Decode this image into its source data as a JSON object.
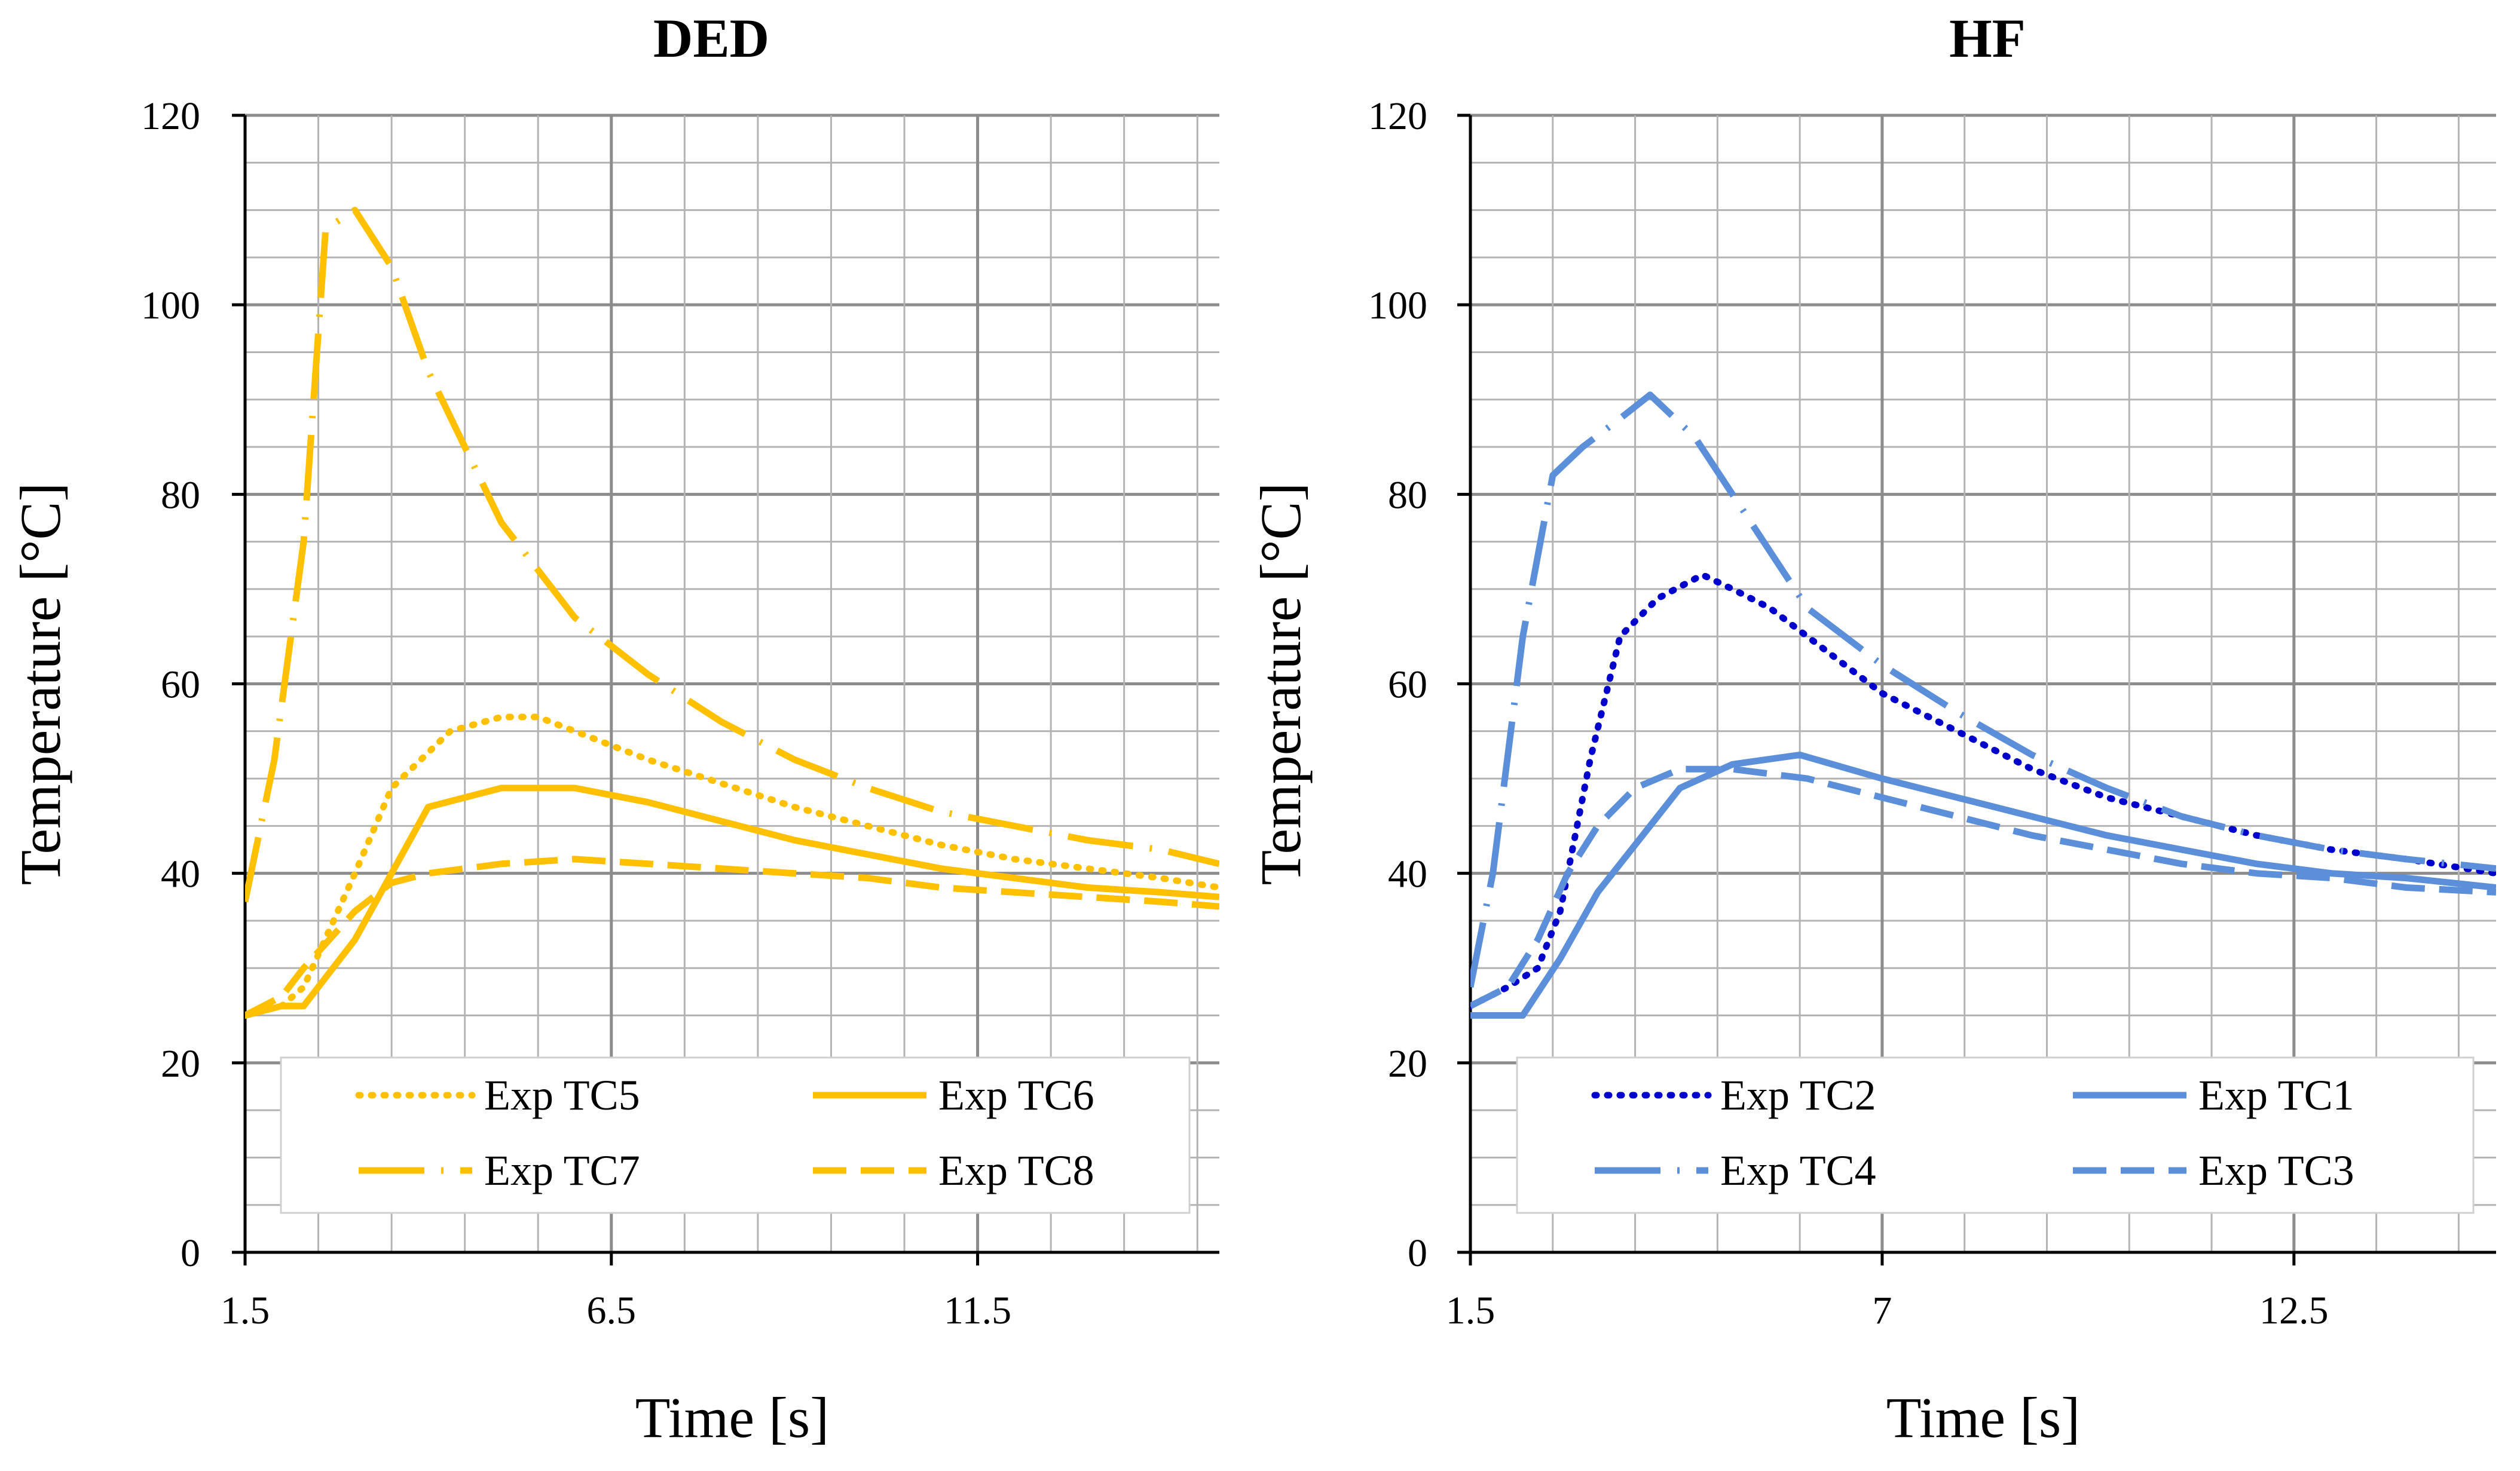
{
  "chart_data": [
    {
      "type": "line",
      "title": "DED",
      "xlabel": "Time [s]",
      "ylabel": "Temperature [°C]",
      "xlim": [
        1.5,
        14.8
      ],
      "ylim": [
        0,
        120
      ],
      "x_major_ticks": [
        1.5,
        6.5,
        11.5
      ],
      "x_tick_labels": [
        "1.5",
        "6.5",
        "11.5"
      ],
      "x_gridlines": [
        1.5,
        2.5,
        3.5,
        4.5,
        5.5,
        6.5,
        7.5,
        8.5,
        9.5,
        10.5,
        11.5,
        12.5,
        13.5,
        14.5
      ],
      "y_major_ticks": [
        0,
        20,
        40,
        60,
        80,
        100,
        120
      ],
      "y_tick_labels": [
        "0",
        "20",
        "40",
        "60",
        "80",
        "100",
        "120"
      ],
      "y_minor_step": 5,
      "grid": true,
      "legend": {
        "position": "bottom",
        "columns": 2,
        "order": [
          "Exp TC5",
          "Exp TC6",
          "Exp TC7",
          "Exp TC8"
        ]
      },
      "series": [
        {
          "name": "Exp TC5",
          "style": "dotted",
          "color": "#FFC000",
          "x": [
            1.5,
            2.0,
            2.3,
            3.0,
            3.5,
            4.3,
            5.0,
            5.5,
            6.0,
            7.0,
            8.0,
            9.0,
            10.0,
            11.0,
            12.0,
            13.0,
            14.0,
            14.8
          ],
          "y": [
            25,
            26,
            28,
            40,
            49,
            55,
            56.5,
            56.5,
            55,
            52,
            49.5,
            47,
            45,
            43,
            41.5,
            40.5,
            39.5,
            38.5
          ]
        },
        {
          "name": "Exp TC6",
          "style": "solid",
          "color": "#FFC000",
          "x": [
            1.5,
            2.0,
            2.3,
            3.0,
            3.5,
            4.0,
            5.0,
            5.5,
            6.0,
            7.0,
            8.0,
            9.0,
            10.0,
            11.0,
            12.0,
            13.0,
            14.0,
            14.8
          ],
          "y": [
            25,
            26,
            26,
            33,
            40,
            47,
            49,
            49,
            49,
            47.5,
            45.5,
            43.5,
            42,
            40.5,
            39.5,
            38.5,
            38,
            37.5
          ]
        },
        {
          "name": "Exp TC7",
          "style": "long-dash-dot",
          "color": "#FFC000",
          "x": [
            1.5,
            1.9,
            2.3,
            2.6,
            3.0,
            3.5,
            4.0,
            5.0,
            6.0,
            7.0,
            8.0,
            9.0,
            10.0,
            11.0,
            12.0,
            13.0,
            14.0,
            14.8
          ],
          "y": [
            37,
            52,
            75,
            108,
            110,
            104,
            93,
            77,
            67,
            61,
            56,
            52,
            49,
            46.5,
            45,
            43.5,
            42.5,
            41
          ]
        },
        {
          "name": "Exp TC8",
          "style": "dashed",
          "color": "#FFC000",
          "x": [
            1.5,
            2.0,
            2.3,
            3.0,
            3.5,
            4.0,
            5.0,
            6.0,
            7.0,
            8.0,
            9.0,
            10.0,
            11.0,
            12.0,
            13.0,
            14.0,
            14.8
          ],
          "y": [
            25,
            27,
            30,
            36,
            39,
            40,
            41,
            41.5,
            41,
            40.5,
            40,
            39.5,
            38.5,
            38,
            37.5,
            37,
            36.5
          ]
        }
      ]
    },
    {
      "type": "line",
      "title": "HF",
      "xlabel": "Time [s]",
      "ylabel": "Temperature [°C]",
      "xlim": [
        1.5,
        15.2
      ],
      "ylim": [
        0,
        120
      ],
      "x_major_ticks": [
        1.5,
        7,
        12.5
      ],
      "x_tick_labels": [
        "1.5",
        "7",
        "12.5"
      ],
      "x_gridlines": [
        1.5,
        2.6,
        3.7,
        4.8,
        5.9,
        7.0,
        8.1,
        9.2,
        10.3,
        11.4,
        12.5,
        13.6,
        14.7
      ],
      "y_major_ticks": [
        0,
        20,
        40,
        60,
        80,
        100,
        120
      ],
      "y_tick_labels": [
        "0",
        "20",
        "40",
        "60",
        "80",
        "100",
        "120"
      ],
      "y_minor_step": 5,
      "grid": true,
      "legend": {
        "position": "bottom",
        "columns": 2,
        "order": [
          "Exp TC2",
          "Exp TC1",
          "Exp TC4",
          "Exp TC3"
        ]
      },
      "series": [
        {
          "name": "Exp TC2",
          "style": "dotted",
          "color": "#0000CC",
          "x": [
            1.5,
            2.0,
            2.4,
            2.7,
            3.1,
            3.5,
            4.0,
            4.6,
            5.0,
            5.5,
            6.0,
            7.0,
            8.0,
            9.0,
            10.0,
            11.0,
            12.0,
            13.0,
            14.0,
            15.2
          ],
          "y": [
            26,
            28,
            30,
            36,
            52,
            65,
            69,
            71.5,
            70,
            68,
            65,
            59,
            55,
            51,
            48,
            46,
            44,
            42.5,
            41.5,
            40
          ]
        },
        {
          "name": "Exp TC1",
          "style": "solid",
          "color": "#5B8FD9",
          "x": [
            1.5,
            2.2,
            2.7,
            3.2,
            3.6,
            4.3,
            5.0,
            5.9,
            7.0,
            8.0,
            9.0,
            10.0,
            11.0,
            12.0,
            13.0,
            14.0,
            15.2
          ],
          "y": [
            25,
            25,
            31,
            38,
            42,
            49,
            51.5,
            52.5,
            50,
            48,
            46,
            44,
            42.5,
            41,
            40,
            39.5,
            38.5
          ]
        },
        {
          "name": "Exp TC4",
          "style": "long-dash-dot",
          "color": "#5B8FD9",
          "x": [
            1.5,
            1.8,
            2.2,
            2.6,
            3.0,
            3.5,
            3.9,
            4.5,
            5.0,
            5.5,
            6.0,
            7.0,
            8.0,
            9.0,
            10.0,
            11.0,
            12.0,
            13.0,
            14.0,
            15.2
          ],
          "y": [
            28,
            40,
            65,
            82,
            85,
            88,
            90.5,
            86,
            80,
            74,
            68,
            62,
            57,
            52.5,
            49,
            46,
            44,
            42.5,
            41.5,
            40.5
          ]
        },
        {
          "name": "Exp TC3",
          "style": "dashed",
          "color": "#5B8FD9",
          "x": [
            1.5,
            2.0,
            2.4,
            2.8,
            3.2,
            3.7,
            4.3,
            5.0,
            6.0,
            7.0,
            8.0,
            9.0,
            10.0,
            11.0,
            12.0,
            13.0,
            14.0,
            15.2
          ],
          "y": [
            26,
            28,
            33,
            40,
            45,
            49,
            51,
            51,
            50,
            48,
            46,
            44,
            42.5,
            41,
            40,
            39.5,
            38.5,
            38
          ]
        }
      ]
    }
  ]
}
